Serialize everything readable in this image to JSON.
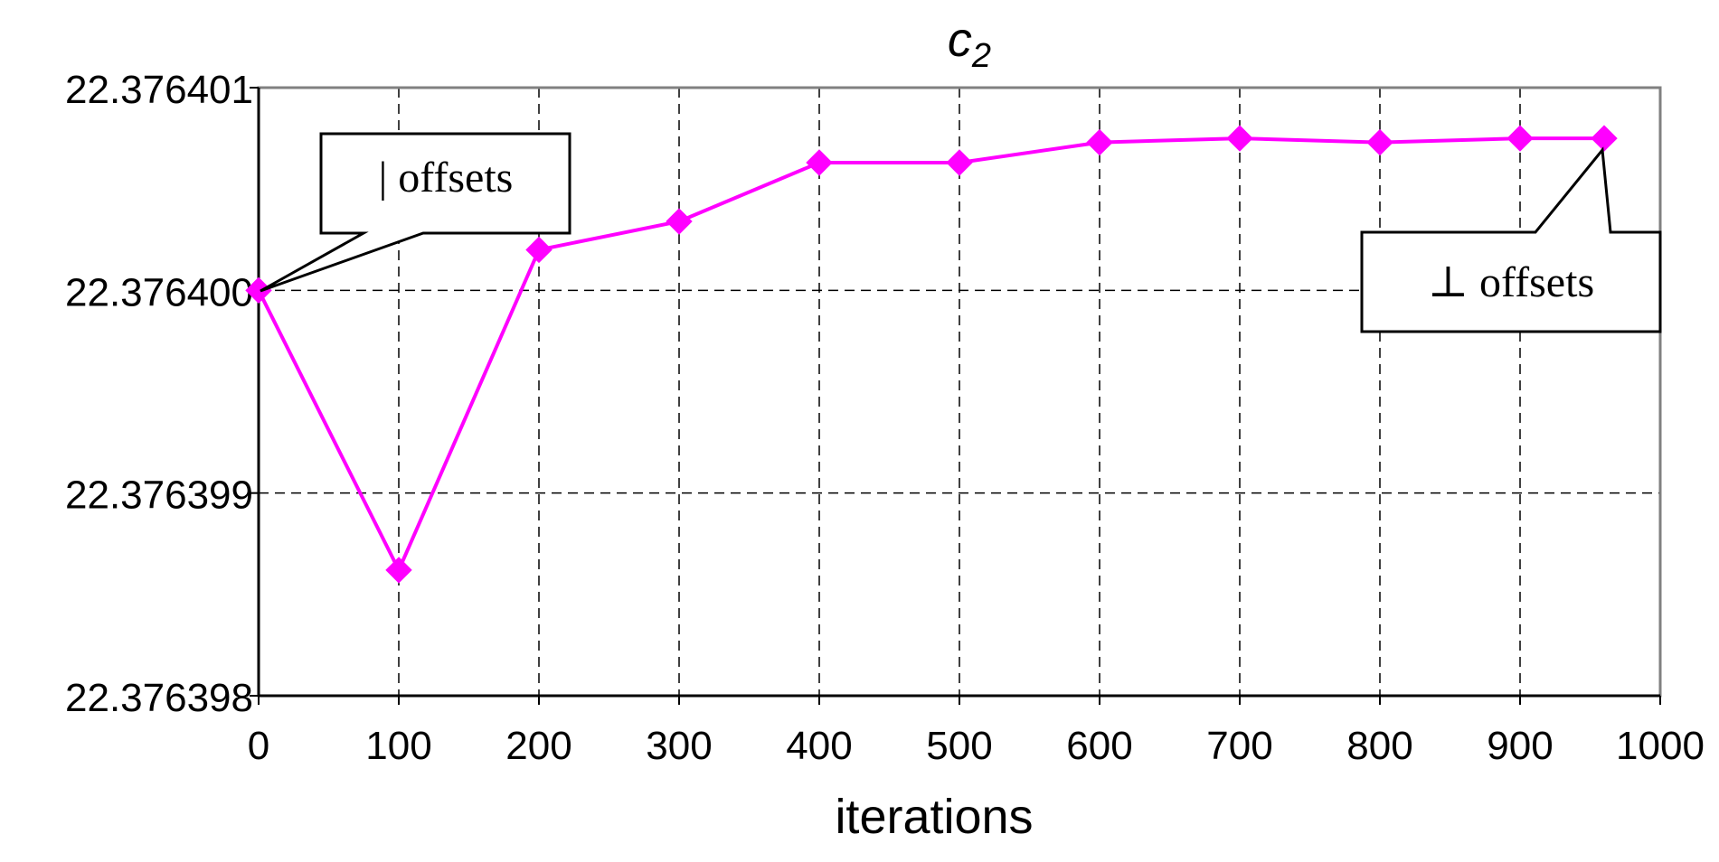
{
  "chart_data": {
    "type": "line",
    "title": "c",
    "title_subscript": "2",
    "xlabel": "iterations",
    "ylabel": "",
    "xlim": [
      0,
      1000
    ],
    "ylim": [
      22.376398,
      22.376401
    ],
    "x_ticks": [
      0,
      100,
      200,
      300,
      400,
      500,
      600,
      700,
      800,
      900,
      1000
    ],
    "x_tick_labels": [
      "0",
      "100",
      "200",
      "300",
      "400",
      "500",
      "600",
      "700",
      "800",
      "900",
      "1000"
    ],
    "y_ticks": [
      22.376398,
      22.376399,
      22.3764,
      22.376401
    ],
    "y_tick_labels": [
      "22.376398",
      "22.376399",
      "22.376400",
      "22.376401"
    ],
    "grid": true,
    "legend": "none",
    "series": [
      {
        "color": "#ff00ff",
        "marker": "diamond",
        "x": [
          0,
          100,
          200,
          300,
          400,
          500,
          600,
          700,
          800,
          900,
          960
        ],
        "y": [
          22.3764,
          22.37639862,
          22.3764002,
          22.37640034,
          22.37640063,
          22.37640063,
          22.37640073,
          22.37640075,
          22.37640073,
          22.37640075,
          22.37640075
        ]
      }
    ],
    "annotations": [
      {
        "text": "| offsets",
        "target_x": 0,
        "target_y": 22.3764
      },
      {
        "text": "⊥ offsets",
        "target_x": 960,
        "target_y": 22.37640075
      }
    ]
  }
}
